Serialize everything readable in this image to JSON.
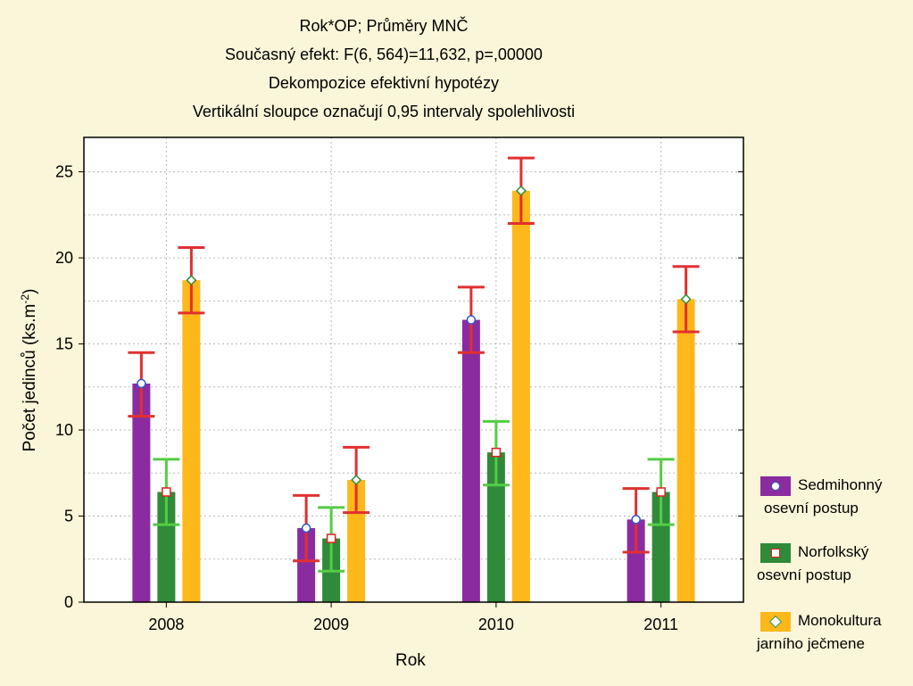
{
  "titles": [
    "Rok*OP; Průměry MNČ",
    "Současný efekt: F(6, 564)=11,632, p=,00000",
    "Dekompozice efektivní hypotézy",
    "Vertikální sloupce označují 0,95 intervaly spolehlivosti"
  ],
  "xlabel": "Rok",
  "ylabel": "Počet jedinců (ks.m",
  "ylabel_sup": "-2",
  "ylabel_tail": ")",
  "legend": [
    {
      "line1": "Sedmihonný",
      "line2": "osevní postup",
      "color": "#8a2ca0",
      "marker": "circle",
      "marker_color": "#3355cc"
    },
    {
      "line1": "Norfolkský",
      "line2": "osevní postup",
      "color": "#2f8a3a",
      "marker": "square",
      "marker_color": "#e02020"
    },
    {
      "line1": "Monokultura",
      "line2": "jarního ječmene",
      "color": "#ffb81a",
      "marker": "diamond",
      "marker_color": "#3a8a3a"
    }
  ],
  "chart_data": {
    "type": "bar",
    "categories": [
      "2008",
      "2009",
      "2010",
      "2011"
    ],
    "ylim": [
      0,
      27
    ],
    "yticks": [
      0,
      5,
      10,
      15,
      20,
      25
    ],
    "grid": true,
    "series": [
      {
        "name": "Sedmihonný osevní postup",
        "color": "#8a2ca0",
        "err_color": "#e03030",
        "values": [
          12.7,
          4.3,
          16.4,
          4.8
        ],
        "ci_low": [
          10.8,
          2.4,
          14.5,
          2.9
        ],
        "ci_high": [
          14.5,
          6.2,
          18.3,
          6.6
        ]
      },
      {
        "name": "Norfolkský osevní postup",
        "color": "#2f8a3a",
        "err_color": "#55cc44",
        "values": [
          6.4,
          3.7,
          8.7,
          6.4
        ],
        "ci_low": [
          4.5,
          1.8,
          6.8,
          4.5
        ],
        "ci_high": [
          8.3,
          5.5,
          10.5,
          8.3
        ]
      },
      {
        "name": "Monokultura jarního ječmene",
        "color": "#ffb81a",
        "err_color": "#e03030",
        "values": [
          18.7,
          7.1,
          23.9,
          17.6
        ],
        "ci_low": [
          16.8,
          5.2,
          22.0,
          15.7
        ],
        "ci_high": [
          20.6,
          9.0,
          25.8,
          19.5
        ]
      }
    ]
  }
}
